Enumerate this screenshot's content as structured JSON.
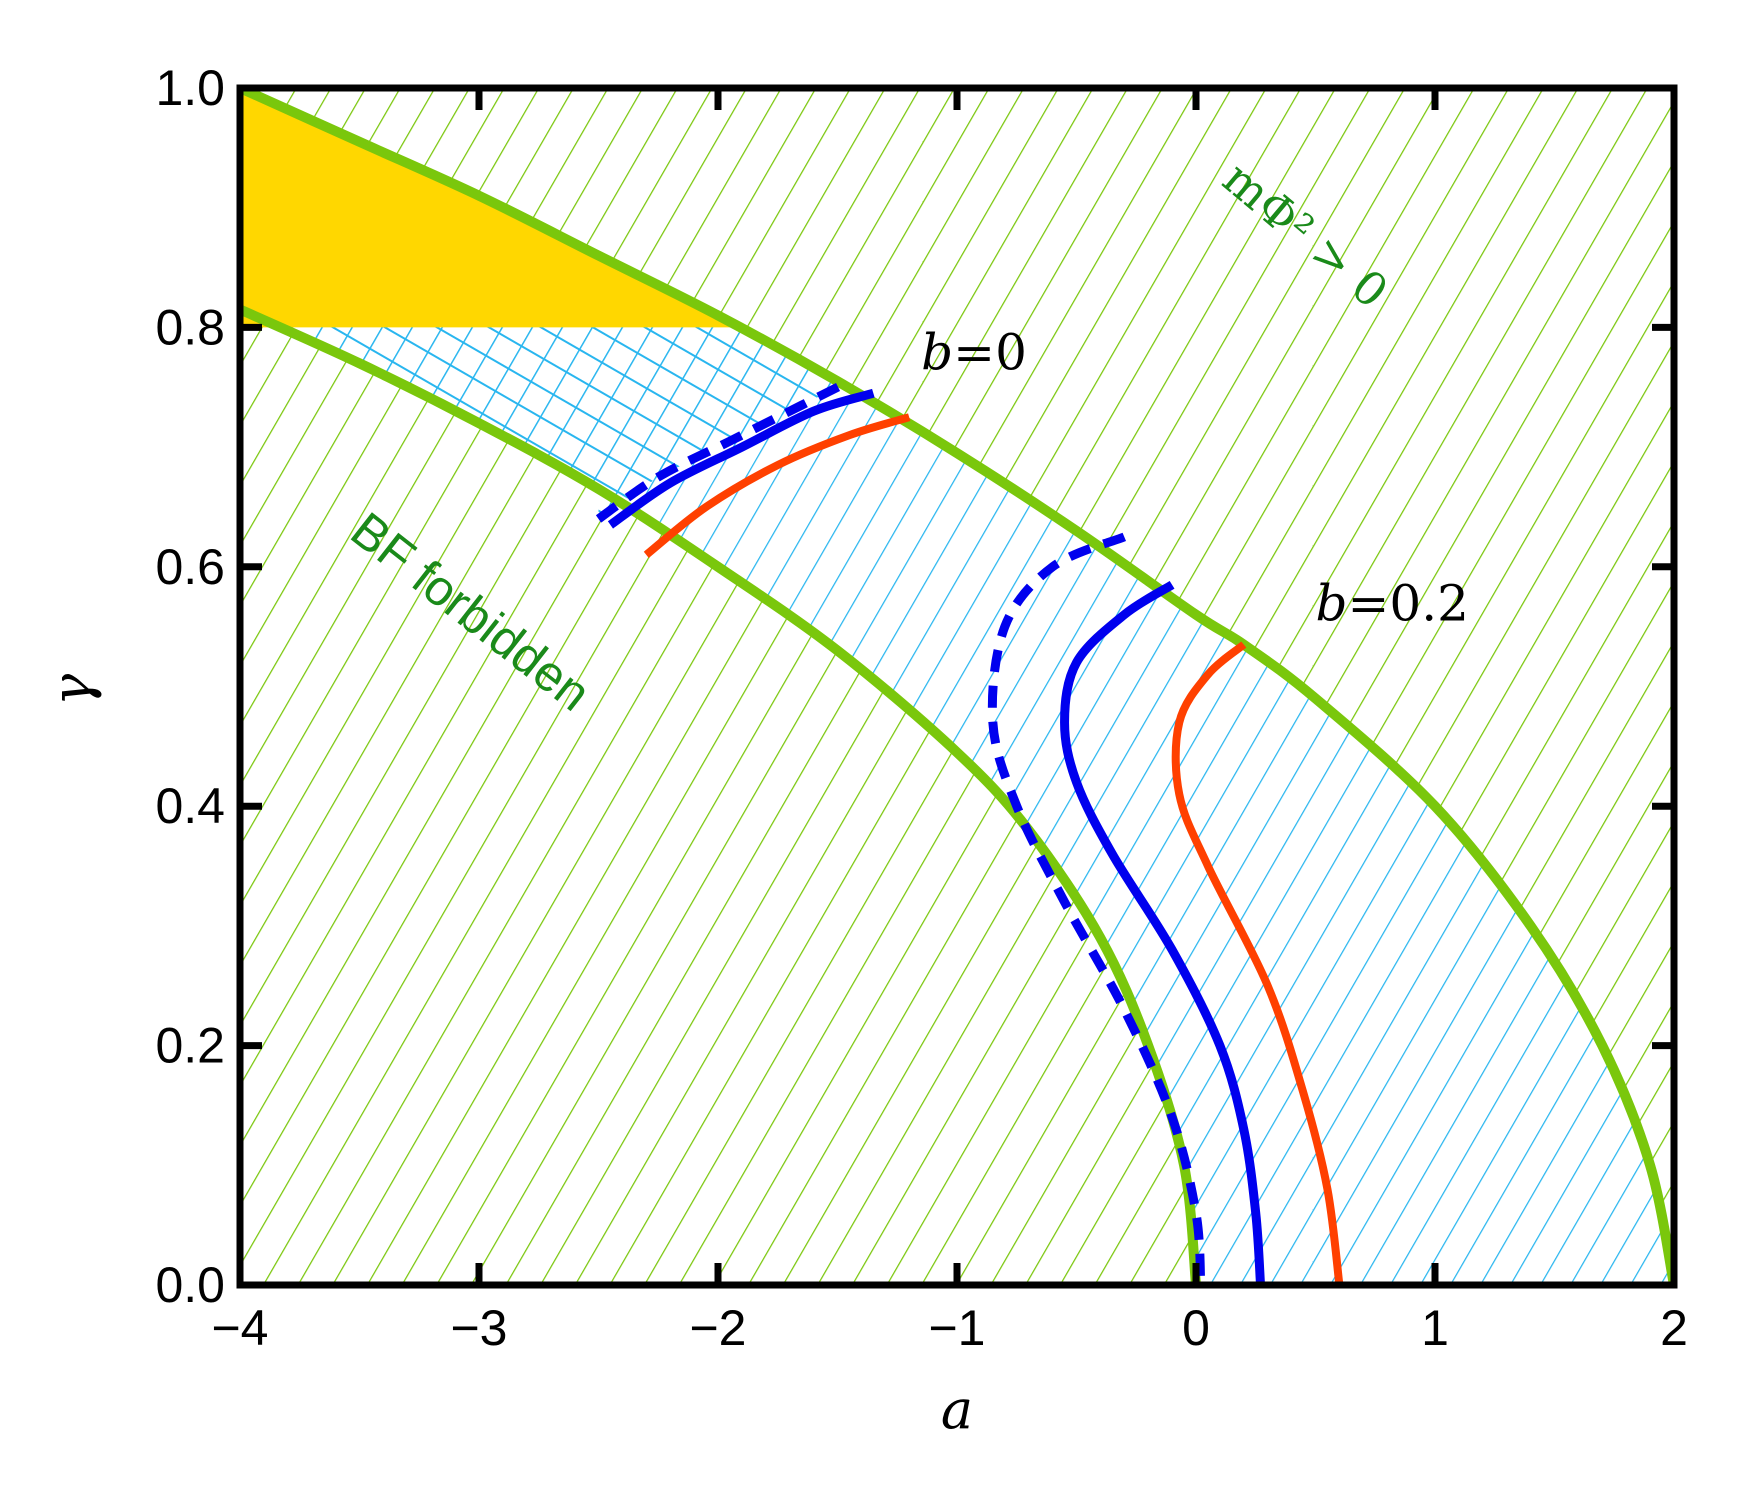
{
  "chart_data": {
    "type": "line",
    "xlabel": "a",
    "ylabel": "γ",
    "xlim": [
      -4,
      2
    ],
    "ylim": [
      0.0,
      1.0
    ],
    "xticks": [
      "−4",
      "−3",
      "−2",
      "−1",
      "0",
      "1",
      "2"
    ],
    "yticks": [
      "0.0",
      "0.2",
      "0.4",
      "0.6",
      "0.8",
      "1.0"
    ],
    "grid": false,
    "series": [
      {
        "style": "green-boundary-upper",
        "color": "#7ac70c",
        "x": [
          -4.0,
          -3.5,
          -3.0,
          -2.5,
          -2.0,
          -1.5,
          -1.0,
          -0.5,
          0.0,
          0.2,
          0.5,
          1.0,
          1.4,
          1.7,
          1.9,
          2.0
        ],
        "y": [
          1.0,
          0.955,
          0.91,
          0.86,
          0.81,
          0.755,
          0.695,
          0.63,
          0.56,
          0.535,
          0.49,
          0.4,
          0.3,
          0.2,
          0.1,
          0.0
        ]
      },
      {
        "style": "green-boundary-lower",
        "color": "#7ac70c",
        "x": [
          -4.0,
          -3.5,
          -3.0,
          -2.5,
          -2.0,
          -1.5,
          -1.0,
          -0.7,
          -0.4,
          -0.2,
          -0.05,
          0.0
        ],
        "y": [
          0.815,
          0.77,
          0.72,
          0.665,
          0.6,
          0.53,
          0.445,
          0.38,
          0.29,
          0.2,
          0.1,
          0.0
        ]
      },
      {
        "style": "blue-solid",
        "color": "#0000ee",
        "x": [
          -2.45,
          -2.2,
          -1.9,
          -1.6,
          -1.35
        ],
        "y": [
          0.635,
          0.67,
          0.7,
          0.73,
          0.745
        ]
      },
      {
        "style": "blue-solid",
        "color": "#0000ee",
        "x": [
          -0.1,
          -0.3,
          -0.5,
          -0.55,
          -0.5,
          -0.35,
          -0.1,
          0.1,
          0.2,
          0.25,
          0.27
        ],
        "y": [
          0.585,
          0.56,
          0.52,
          0.47,
          0.42,
          0.36,
          0.28,
          0.2,
          0.13,
          0.06,
          0.0
        ]
      },
      {
        "style": "blue-dashed",
        "color": "#0000ee",
        "x": [
          -2.5,
          -2.25,
          -1.95,
          -1.65,
          -1.45
        ],
        "y": [
          0.64,
          0.675,
          0.705,
          0.735,
          0.755
        ]
      },
      {
        "style": "blue-dashed",
        "color": "#0000ee",
        "x": [
          -0.3,
          -0.6,
          -0.8,
          -0.85,
          -0.75,
          -0.55,
          -0.3,
          -0.1,
          0.0,
          0.02
        ],
        "y": [
          0.625,
          0.6,
          0.55,
          0.47,
          0.4,
          0.32,
          0.23,
          0.14,
          0.06,
          0.0
        ]
      },
      {
        "style": "red",
        "color": "#ff4000",
        "x": [
          -2.3,
          -2.05,
          -1.75,
          -1.45,
          -1.2
        ],
        "y": [
          0.61,
          0.65,
          0.685,
          0.71,
          0.725
        ]
      },
      {
        "style": "red",
        "color": "#ff4000",
        "x": [
          0.2,
          0.05,
          -0.07,
          -0.07,
          0.05,
          0.3,
          0.45,
          0.55,
          0.6
        ],
        "y": [
          0.535,
          0.51,
          0.47,
          0.41,
          0.35,
          0.25,
          0.16,
          0.08,
          0.0
        ]
      }
    ],
    "regions": [
      {
        "name": "yellow",
        "color": "#ffd700"
      },
      {
        "name": "cyan-hatch",
        "color": "#29b6ef"
      },
      {
        "name": "green-hatch",
        "color": "#7ac70c"
      }
    ],
    "annotations": {
      "b0": {
        "lhs": "b",
        "rhs": "0",
        "x": -1.15,
        "y": 0.765
      },
      "b02": {
        "lhs": "b",
        "rhs": "0.2",
        "x": 0.5,
        "y": 0.555
      },
      "bf": {
        "text": "BF forbidden",
        "x": -3.55,
        "y": 0.625,
        "angle": 38
      },
      "mphi": {
        "text": "mΦ² > 0",
        "x": 0.1,
        "y": 0.92,
        "angle": 40
      }
    }
  }
}
